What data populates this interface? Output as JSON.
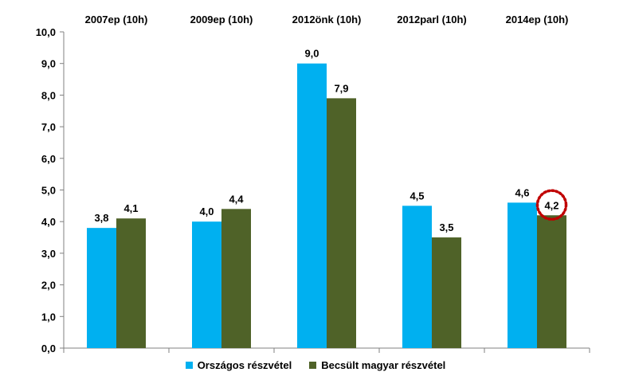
{
  "chart_data": {
    "type": "bar",
    "categories": [
      "2007ep (10h)",
      "2009ep (10h)",
      "2012önk (10h)",
      "2012parl (10h)",
      "2014ep (10h)"
    ],
    "series": [
      {
        "name": "Országos részvétel",
        "color": "#00B0F0",
        "values": [
          3.8,
          4.0,
          9.0,
          4.5,
          4.6
        ],
        "labels": [
          "3,8",
          "4,0",
          "9,0",
          "4,5",
          "4,6"
        ]
      },
      {
        "name": "Becsült magyar részvétel",
        "color": "#4F6228",
        "values": [
          4.1,
          4.4,
          7.9,
          3.5,
          4.2
        ],
        "labels": [
          "4,1",
          "4,4",
          "7,9",
          "3,5",
          "4,2"
        ]
      }
    ],
    "ylim": [
      0,
      10
    ],
    "yticks": [
      "0,0",
      "1,0",
      "2,0",
      "3,0",
      "4,0",
      "5,0",
      "6,0",
      "7,0",
      "8,0",
      "9,0",
      "10,0"
    ],
    "grid": false,
    "legend_position": "bottom",
    "annotation": {
      "type": "dotted-circle",
      "series": 1,
      "category": 4,
      "color": "#C00000"
    }
  },
  "legend": {
    "items": [
      {
        "label": "Országos részvétel",
        "color": "#00B0F0"
      },
      {
        "label": "Becsült magyar részvétel",
        "color": "#4F6228"
      }
    ]
  }
}
